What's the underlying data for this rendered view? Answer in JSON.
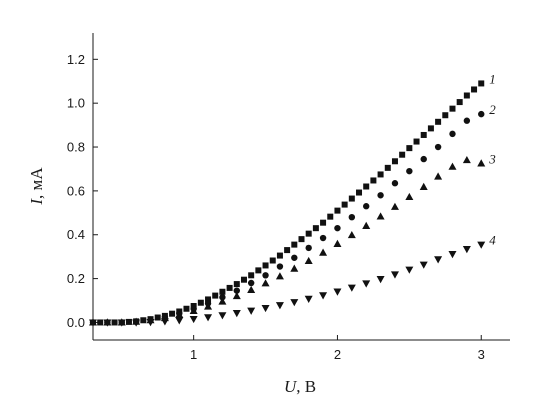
{
  "chart_data": {
    "type": "scatter",
    "title": "",
    "xlabel_symbol": "U",
    "xlabel_unit": ", В",
    "ylabel_symbol": "I",
    "ylabel_unit": ", мА",
    "xlim": [
      0.3,
      3.2
    ],
    "ylim": [
      -0.08,
      1.32
    ],
    "x_ticks": [
      1,
      2,
      3
    ],
    "y_ticks": [
      0.0,
      0.2,
      0.4,
      0.6,
      0.8,
      1.0,
      1.2
    ],
    "x_tick_labels": [
      "1",
      "2",
      "3"
    ],
    "y_tick_labels": [
      "0.0",
      "0.2",
      "0.4",
      "0.6",
      "0.8",
      "1.0",
      "1.2"
    ],
    "grid": false,
    "series": [
      {
        "name": "1",
        "marker": "square",
        "x": [
          0.3,
          0.4,
          0.5,
          0.6,
          0.7,
          0.8,
          0.9,
          1.0,
          1.1,
          1.2,
          1.3,
          1.4,
          1.5,
          1.6,
          1.7,
          1.8,
          1.9,
          2.0,
          2.1,
          2.2,
          2.3,
          2.4,
          2.5,
          2.6,
          2.7,
          2.8,
          2.9,
          3.0
        ],
        "values": [
          0.0,
          0.0,
          0.0,
          0.005,
          0.015,
          0.03,
          0.05,
          0.075,
          0.105,
          0.14,
          0.175,
          0.215,
          0.26,
          0.305,
          0.355,
          0.405,
          0.455,
          0.51,
          0.565,
          0.62,
          0.675,
          0.735,
          0.795,
          0.855,
          0.915,
          0.975,
          1.035,
          1.09
        ]
      },
      {
        "name": "2",
        "marker": "circle",
        "x": [
          0.3,
          0.4,
          0.5,
          0.6,
          0.7,
          0.8,
          0.9,
          1.0,
          1.1,
          1.2,
          1.3,
          1.4,
          1.5,
          1.6,
          1.7,
          1.8,
          1.9,
          2.0,
          2.1,
          2.2,
          2.3,
          2.4,
          2.5,
          2.6,
          2.7,
          2.8,
          2.9,
          3.0
        ],
        "values": [
          0.0,
          0.0,
          0.0,
          0.004,
          0.012,
          0.025,
          0.042,
          0.062,
          0.087,
          0.115,
          0.145,
          0.18,
          0.215,
          0.255,
          0.295,
          0.34,
          0.385,
          0.43,
          0.48,
          0.53,
          0.58,
          0.635,
          0.69,
          0.745,
          0.8,
          0.86,
          0.92,
          0.95
        ]
      },
      {
        "name": "3",
        "marker": "triangle-up",
        "x": [
          0.3,
          0.4,
          0.5,
          0.6,
          0.7,
          0.8,
          0.9,
          1.0,
          1.1,
          1.2,
          1.3,
          1.4,
          1.5,
          1.6,
          1.7,
          1.8,
          1.9,
          2.0,
          2.1,
          2.2,
          2.3,
          2.4,
          2.5,
          2.6,
          2.7,
          2.8,
          2.9,
          3.0
        ],
        "values": [
          0.0,
          0.0,
          0.0,
          0.003,
          0.01,
          0.02,
          0.035,
          0.052,
          0.072,
          0.095,
          0.12,
          0.148,
          0.178,
          0.21,
          0.245,
          0.28,
          0.318,
          0.358,
          0.398,
          0.44,
          0.483,
          0.527,
          0.572,
          0.618,
          0.665,
          0.71,
          0.74,
          0.725
        ]
      },
      {
        "name": "4",
        "marker": "triangle-down",
        "x": [
          0.3,
          0.4,
          0.5,
          0.6,
          0.7,
          0.8,
          0.9,
          1.0,
          1.1,
          1.2,
          1.3,
          1.4,
          1.5,
          1.6,
          1.7,
          1.8,
          1.9,
          2.0,
          2.1,
          2.2,
          2.3,
          2.4,
          2.5,
          2.6,
          2.7,
          2.8,
          2.9,
          3.0
        ],
        "values": [
          0.0,
          0.0,
          0.0,
          0.0,
          0.002,
          0.005,
          0.01,
          0.016,
          0.024,
          0.033,
          0.043,
          0.054,
          0.066,
          0.079,
          0.093,
          0.108,
          0.124,
          0.141,
          0.159,
          0.178,
          0.198,
          0.219,
          0.241,
          0.264,
          0.288,
          0.312,
          0.335,
          0.355
        ]
      }
    ]
  }
}
